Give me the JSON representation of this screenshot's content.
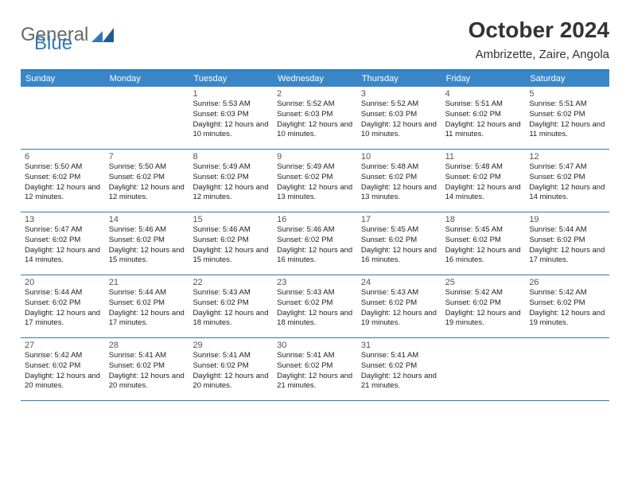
{
  "brand": {
    "part1": "General",
    "part2": "Blue"
  },
  "title": "October 2024",
  "location": "Ambrizette, Zaire, Angola",
  "colors": {
    "header_bg": "#3a87c8",
    "border": "#2f79b9",
    "text": "#222222",
    "muted": "#555555"
  },
  "day_names": [
    "Sunday",
    "Monday",
    "Tuesday",
    "Wednesday",
    "Thursday",
    "Friday",
    "Saturday"
  ],
  "weeks": [
    [
      null,
      null,
      {
        "n": "1",
        "sr": "5:53 AM",
        "ss": "6:03 PM",
        "dl": "12 hours and 10 minutes."
      },
      {
        "n": "2",
        "sr": "5:52 AM",
        "ss": "6:03 PM",
        "dl": "12 hours and 10 minutes."
      },
      {
        "n": "3",
        "sr": "5:52 AM",
        "ss": "6:03 PM",
        "dl": "12 hours and 10 minutes."
      },
      {
        "n": "4",
        "sr": "5:51 AM",
        "ss": "6:02 PM",
        "dl": "12 hours and 11 minutes."
      },
      {
        "n": "5",
        "sr": "5:51 AM",
        "ss": "6:02 PM",
        "dl": "12 hours and 11 minutes."
      }
    ],
    [
      {
        "n": "6",
        "sr": "5:50 AM",
        "ss": "6:02 PM",
        "dl": "12 hours and 12 minutes."
      },
      {
        "n": "7",
        "sr": "5:50 AM",
        "ss": "6:02 PM",
        "dl": "12 hours and 12 minutes."
      },
      {
        "n": "8",
        "sr": "5:49 AM",
        "ss": "6:02 PM",
        "dl": "12 hours and 12 minutes."
      },
      {
        "n": "9",
        "sr": "5:49 AM",
        "ss": "6:02 PM",
        "dl": "12 hours and 13 minutes."
      },
      {
        "n": "10",
        "sr": "5:48 AM",
        "ss": "6:02 PM",
        "dl": "12 hours and 13 minutes."
      },
      {
        "n": "11",
        "sr": "5:48 AM",
        "ss": "6:02 PM",
        "dl": "12 hours and 14 minutes."
      },
      {
        "n": "12",
        "sr": "5:47 AM",
        "ss": "6:02 PM",
        "dl": "12 hours and 14 minutes."
      }
    ],
    [
      {
        "n": "13",
        "sr": "5:47 AM",
        "ss": "6:02 PM",
        "dl": "12 hours and 14 minutes."
      },
      {
        "n": "14",
        "sr": "5:46 AM",
        "ss": "6:02 PM",
        "dl": "12 hours and 15 minutes."
      },
      {
        "n": "15",
        "sr": "5:46 AM",
        "ss": "6:02 PM",
        "dl": "12 hours and 15 minutes."
      },
      {
        "n": "16",
        "sr": "5:46 AM",
        "ss": "6:02 PM",
        "dl": "12 hours and 16 minutes."
      },
      {
        "n": "17",
        "sr": "5:45 AM",
        "ss": "6:02 PM",
        "dl": "12 hours and 16 minutes."
      },
      {
        "n": "18",
        "sr": "5:45 AM",
        "ss": "6:02 PM",
        "dl": "12 hours and 16 minutes."
      },
      {
        "n": "19",
        "sr": "5:44 AM",
        "ss": "6:02 PM",
        "dl": "12 hours and 17 minutes."
      }
    ],
    [
      {
        "n": "20",
        "sr": "5:44 AM",
        "ss": "6:02 PM",
        "dl": "12 hours and 17 minutes."
      },
      {
        "n": "21",
        "sr": "5:44 AM",
        "ss": "6:02 PM",
        "dl": "12 hours and 17 minutes."
      },
      {
        "n": "22",
        "sr": "5:43 AM",
        "ss": "6:02 PM",
        "dl": "12 hours and 18 minutes."
      },
      {
        "n": "23",
        "sr": "5:43 AM",
        "ss": "6:02 PM",
        "dl": "12 hours and 18 minutes."
      },
      {
        "n": "24",
        "sr": "5:43 AM",
        "ss": "6:02 PM",
        "dl": "12 hours and 19 minutes."
      },
      {
        "n": "25",
        "sr": "5:42 AM",
        "ss": "6:02 PM",
        "dl": "12 hours and 19 minutes."
      },
      {
        "n": "26",
        "sr": "5:42 AM",
        "ss": "6:02 PM",
        "dl": "12 hours and 19 minutes."
      }
    ],
    [
      {
        "n": "27",
        "sr": "5:42 AM",
        "ss": "6:02 PM",
        "dl": "12 hours and 20 minutes."
      },
      {
        "n": "28",
        "sr": "5:41 AM",
        "ss": "6:02 PM",
        "dl": "12 hours and 20 minutes."
      },
      {
        "n": "29",
        "sr": "5:41 AM",
        "ss": "6:02 PM",
        "dl": "12 hours and 20 minutes."
      },
      {
        "n": "30",
        "sr": "5:41 AM",
        "ss": "6:02 PM",
        "dl": "12 hours and 21 minutes."
      },
      {
        "n": "31",
        "sr": "5:41 AM",
        "ss": "6:02 PM",
        "dl": "12 hours and 21 minutes."
      },
      null,
      null
    ]
  ],
  "labels": {
    "sunrise": "Sunrise:",
    "sunset": "Sunset:",
    "daylight": "Daylight:"
  }
}
